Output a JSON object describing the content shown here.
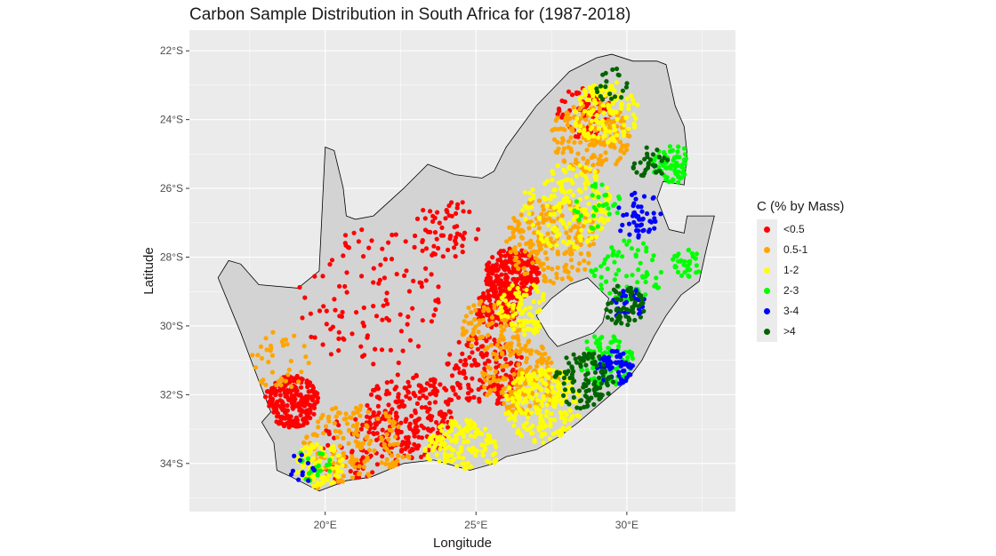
{
  "title": "Carbon Sample Distribution in South Africa for (1987-2018)",
  "chart_data": {
    "type": "scatter",
    "title": "Carbon Sample Distribution in South Africa for (1987-2018)",
    "xlabel": "Longitude",
    "ylabel": "Latitude",
    "xlim": [
      15.5,
      33.6
    ],
    "ylim": [
      -35.4,
      -21.4
    ],
    "x_ticks": [
      {
        "value": 20,
        "label": "20°E"
      },
      {
        "value": 25,
        "label": "25°E"
      },
      {
        "value": 30,
        "label": "30°E"
      }
    ],
    "y_ticks": [
      {
        "value": -22,
        "label": "22°S"
      },
      {
        "value": -24,
        "label": "24°S"
      },
      {
        "value": -26,
        "label": "26°S"
      },
      {
        "value": -28,
        "label": "28°S"
      },
      {
        "value": -30,
        "label": "30°S"
      },
      {
        "value": -32,
        "label": "32°S"
      },
      {
        "value": -34,
        "label": "34°S"
      }
    ],
    "grid": true,
    "legend": {
      "title": "C (% by Mass)",
      "position": "right"
    },
    "series": [
      {
        "name": "<0.5",
        "color": "#ff0000",
        "regions": [
          {
            "lon": 26.2,
            "lat": -28.5,
            "r": 0.9,
            "n": 260
          },
          {
            "lon": 25.7,
            "lat": -29.5,
            "r": 0.7,
            "n": 120
          },
          {
            "lon": 18.9,
            "lat": -32.2,
            "r": 0.9,
            "n": 220
          },
          {
            "lon": 22.8,
            "lat": -32.6,
            "r": 1.5,
            "n": 220
          },
          {
            "lon": 25.3,
            "lat": -31.3,
            "r": 1.3,
            "n": 150
          },
          {
            "lon": 21.5,
            "lat": -29.2,
            "r": 2.4,
            "n": 110
          },
          {
            "lon": 24.0,
            "lat": -27.2,
            "r": 1.1,
            "n": 60
          },
          {
            "lon": 28.6,
            "lat": -23.8,
            "r": 0.9,
            "n": 70
          },
          {
            "lon": 21.3,
            "lat": -33.7,
            "r": 1.5,
            "n": 80
          }
        ]
      },
      {
        "name": "0.5-1",
        "color": "#ffa500",
        "regions": [
          {
            "lon": 27.5,
            "lat": -27.5,
            "r": 1.5,
            "n": 200
          },
          {
            "lon": 28.8,
            "lat": -24.5,
            "r": 1.3,
            "n": 170
          },
          {
            "lon": 26.5,
            "lat": -31.5,
            "r": 1.3,
            "n": 170
          },
          {
            "lon": 21.0,
            "lat": -33.8,
            "r": 1.8,
            "n": 160
          },
          {
            "lon": 25.5,
            "lat": -30.0,
            "r": 1.0,
            "n": 80
          },
          {
            "lon": 18.5,
            "lat": -31.0,
            "r": 1.0,
            "n": 40
          }
        ]
      },
      {
        "name": "1-2",
        "color": "#ffff00",
        "regions": [
          {
            "lon": 28.0,
            "lat": -26.5,
            "r": 1.5,
            "n": 180
          },
          {
            "lon": 27.2,
            "lat": -32.3,
            "r": 1.3,
            "n": 220
          },
          {
            "lon": 29.3,
            "lat": -23.8,
            "r": 1.1,
            "n": 130
          },
          {
            "lon": 24.5,
            "lat": -33.7,
            "r": 1.2,
            "n": 140
          },
          {
            "lon": 19.8,
            "lat": -34.0,
            "r": 0.8,
            "n": 90
          },
          {
            "lon": 26.6,
            "lat": -29.5,
            "r": 0.9,
            "n": 80
          }
        ]
      },
      {
        "name": "2-3",
        "color": "#00ff00",
        "regions": [
          {
            "lon": 29.3,
            "lat": -31.0,
            "r": 0.9,
            "n": 90
          },
          {
            "lon": 31.5,
            "lat": -25.3,
            "r": 0.7,
            "n": 70
          },
          {
            "lon": 30.0,
            "lat": -28.5,
            "r": 1.2,
            "n": 70
          },
          {
            "lon": 32.0,
            "lat": -28.2,
            "r": 0.5,
            "n": 35
          },
          {
            "lon": 19.6,
            "lat": -34.0,
            "r": 0.6,
            "n": 20
          },
          {
            "lon": 29.0,
            "lat": -26.5,
            "r": 0.8,
            "n": 30
          }
        ]
      },
      {
        "name": "3-4",
        "color": "#0000ff",
        "regions": [
          {
            "lon": 29.6,
            "lat": -31.2,
            "r": 0.6,
            "n": 60
          },
          {
            "lon": 30.4,
            "lat": -26.8,
            "r": 0.8,
            "n": 50
          },
          {
            "lon": 30.0,
            "lat": -29.3,
            "r": 0.6,
            "n": 30
          },
          {
            "lon": 19.3,
            "lat": -34.1,
            "r": 0.5,
            "n": 12
          }
        ]
      },
      {
        "name": ">4",
        "color": "#006400",
        "regions": [
          {
            "lon": 28.6,
            "lat": -31.6,
            "r": 1.0,
            "n": 110
          },
          {
            "lon": 29.9,
            "lat": -29.4,
            "r": 0.7,
            "n": 60
          },
          {
            "lon": 30.8,
            "lat": -25.3,
            "r": 0.6,
            "n": 30
          },
          {
            "lon": 29.5,
            "lat": -23.0,
            "r": 0.6,
            "n": 20
          }
        ]
      }
    ],
    "outline": [
      [
        16.45,
        -28.6
      ],
      [
        16.8,
        -28.1
      ],
      [
        17.2,
        -28.2
      ],
      [
        17.8,
        -28.8
      ],
      [
        19.1,
        -28.9
      ],
      [
        19.8,
        -28.4
      ],
      [
        20.0,
        -24.8
      ],
      [
        20.3,
        -24.9
      ],
      [
        20.6,
        -26.0
      ],
      [
        20.7,
        -26.8
      ],
      [
        21.0,
        -26.9
      ],
      [
        21.6,
        -26.8
      ],
      [
        22.6,
        -26.0
      ],
      [
        23.4,
        -25.3
      ],
      [
        24.3,
        -25.6
      ],
      [
        25.2,
        -25.7
      ],
      [
        25.6,
        -25.5
      ],
      [
        26.0,
        -24.8
      ],
      [
        27.0,
        -23.6
      ],
      [
        28.1,
        -22.6
      ],
      [
        29.0,
        -22.2
      ],
      [
        29.5,
        -22.1
      ],
      [
        30.2,
        -22.3
      ],
      [
        31.0,
        -22.3
      ],
      [
        31.3,
        -22.4
      ],
      [
        31.6,
        -23.6
      ],
      [
        31.9,
        -24.2
      ],
      [
        32.0,
        -25.0
      ],
      [
        31.9,
        -25.9
      ],
      [
        31.2,
        -25.8
      ],
      [
        31.0,
        -26.3
      ],
      [
        31.4,
        -27.2
      ],
      [
        31.9,
        -27.3
      ],
      [
        32.0,
        -26.8
      ],
      [
        32.9,
        -26.8
      ],
      [
        32.6,
        -27.9
      ],
      [
        32.4,
        -28.7
      ],
      [
        31.8,
        -29.1
      ],
      [
        31.3,
        -29.7
      ],
      [
        30.9,
        -30.3
      ],
      [
        30.5,
        -31.0
      ],
      [
        30.0,
        -31.6
      ],
      [
        29.2,
        -32.2
      ],
      [
        28.4,
        -32.8
      ],
      [
        27.8,
        -33.2
      ],
      [
        27.0,
        -33.6
      ],
      [
        26.0,
        -33.8
      ],
      [
        25.6,
        -34.0
      ],
      [
        24.8,
        -34.2
      ],
      [
        23.6,
        -33.9
      ],
      [
        22.6,
        -34.0
      ],
      [
        21.5,
        -34.4
      ],
      [
        20.7,
        -34.5
      ],
      [
        19.8,
        -34.8
      ],
      [
        18.9,
        -34.4
      ],
      [
        18.4,
        -34.2
      ],
      [
        18.3,
        -33.4
      ],
      [
        17.9,
        -32.8
      ],
      [
        18.2,
        -32.5
      ],
      [
        17.8,
        -31.6
      ],
      [
        17.2,
        -30.2
      ],
      [
        16.45,
        -28.6
      ]
    ],
    "lesotho_outline": [
      [
        27.0,
        -29.7
      ],
      [
        27.5,
        -29.2
      ],
      [
        28.1,
        -28.8
      ],
      [
        28.7,
        -28.6
      ],
      [
        29.4,
        -29.2
      ],
      [
        29.2,
        -29.9
      ],
      [
        28.9,
        -30.2
      ],
      [
        28.3,
        -30.4
      ],
      [
        27.7,
        -30.6
      ],
      [
        27.4,
        -30.3
      ],
      [
        27.0,
        -29.7
      ]
    ]
  }
}
